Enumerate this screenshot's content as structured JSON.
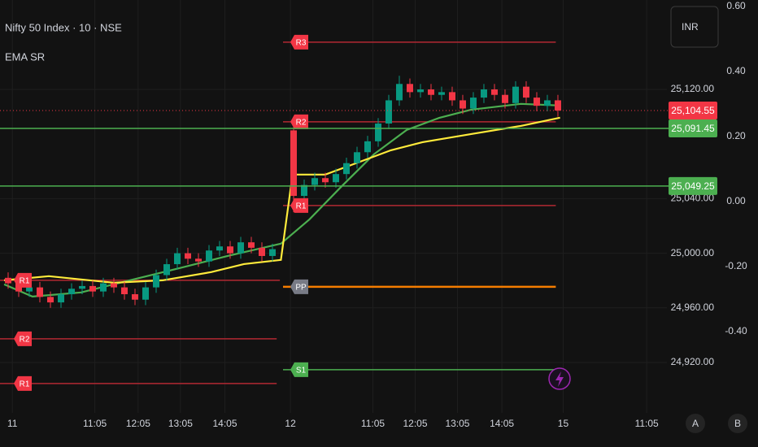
{
  "header": {
    "symbol": "Nifty 50 Index · 10 · NSE",
    "indicator": "EMA SR",
    "currency": "INR",
    "buttons": [
      "A",
      "B"
    ]
  },
  "chart_data": {
    "type": "candlestick",
    "up_color": "#089981",
    "down_color": "#f23645",
    "x": [
      0,
      1,
      2,
      3,
      4,
      5,
      6,
      7,
      8,
      9,
      10,
      11,
      12,
      13,
      14,
      15,
      16,
      17,
      18,
      19,
      20,
      21,
      22,
      23,
      24,
      25,
      27,
      28,
      29,
      30,
      31,
      32,
      33,
      34,
      35,
      36,
      37,
      38,
      39,
      40,
      41,
      42,
      43,
      44,
      45,
      46,
      47,
      48,
      49,
      50,
      51,
      52
    ],
    "open": [
      24982,
      24978,
      24972,
      24975,
      24968,
      24964,
      24970,
      24974,
      24976,
      24972,
      24978,
      24975,
      24970,
      24966,
      24975,
      24984,
      24992,
      25000,
      24996,
      24994,
      25002,
      25005,
      25000,
      25008,
      25004,
      24998,
      25090,
      25042,
      25050,
      25055,
      25052,
      25058,
      25066,
      25074,
      25082,
      25095,
      25112,
      25124,
      25118,
      25120,
      25116,
      25118,
      25112,
      25106,
      25114,
      25120,
      25116,
      25110,
      25122,
      25114,
      25108,
      25112
    ],
    "high": [
      24986,
      24982,
      24979,
      24979,
      24972,
      24974,
      24978,
      24980,
      24980,
      24982,
      24982,
      24979,
      24974,
      24979,
      24988,
      24996,
      25004,
      25004,
      25000,
      25006,
      25009,
      25009,
      25012,
      25012,
      25008,
      25007,
      25095,
      25054,
      25059,
      25059,
      25062,
      25070,
      25078,
      25086,
      25099,
      25116,
      25130,
      25128,
      25124,
      25124,
      25122,
      25122,
      25116,
      25118,
      25124,
      25124,
      25120,
      25126,
      25126,
      25118,
      25116,
      25116
    ],
    "low": [
      24974,
      24968,
      24968,
      24964,
      24960,
      24960,
      24966,
      24970,
      24968,
      24968,
      24971,
      24966,
      24962,
      24962,
      24971,
      24980,
      24988,
      24992,
      24990,
      24990,
      24998,
      24996,
      24996,
      25000,
      24994,
      24994,
      25030,
      25038,
      25046,
      25048,
      25048,
      25054,
      25062,
      25070,
      25078,
      25091,
      25108,
      25114,
      25114,
      25112,
      25112,
      25108,
      25102,
      25102,
      25110,
      25112,
      25106,
      25106,
      25110,
      25104,
      25104,
      25100
    ],
    "close": [
      24978,
      24972,
      24975,
      24968,
      24964,
      24970,
      24974,
      24976,
      24972,
      24978,
      24975,
      24970,
      24966,
      24975,
      24984,
      24992,
      25000,
      24996,
      24994,
      25002,
      25005,
      25000,
      25008,
      25004,
      24998,
      25003,
      25042,
      25050,
      25055,
      25052,
      25058,
      25066,
      25074,
      25082,
      25095,
      25112,
      25124,
      25118,
      25120,
      25116,
      25118,
      25112,
      25106,
      25114,
      25120,
      25116,
      25110,
      25122,
      25114,
      25108,
      25112,
      25104.55
    ],
    "lines": [
      {
        "color": "#4caf50",
        "x": [
          -0.38,
          2.3,
          6.9,
          11.5,
          16.2,
          20.8,
          25.8,
          28.5,
          31.5,
          34.6,
          37.7,
          40.8,
          43.8,
          48.5,
          52.2
        ],
        "values": [
          24977.2,
          24968.3,
          24971.3,
          24980.2,
          24989.1,
          24998.1,
          25007.0,
          25024.8,
          25048.7,
          25072.5,
          25090.3,
          25099.25,
          25105.2,
          25109.4,
          25108.2
        ]
      },
      {
        "color": "#ffeb3b",
        "x": [
          -0.38,
          3.85,
          10,
          14.6,
          19.2,
          22.3,
          25.8,
          26.9,
          30,
          33.1,
          36.2,
          39.2,
          43.8,
          48.5,
          52.2
        ],
        "values": [
          24980.2,
          24983.2,
          24978.4,
          24980.2,
          24986.2,
          24992.1,
          24995.1,
          25057.6,
          25057.6,
          25066.5,
          25075.4,
          25081.4,
          25087.3,
          25093.3,
          25099.3
        ]
      }
    ],
    "levels": [
      {
        "label": "R1",
        "value": 24980.2,
        "color": "#f23645",
        "line_color": "#b22833",
        "x": [
          -0.77,
          25.7
        ]
      },
      {
        "label": "R2",
        "value": 24937.3,
        "color": "#f23645",
        "line_color": "#b22833",
        "x": [
          -0.77,
          25.4
        ]
      },
      {
        "label": "R1",
        "value": 24904.6,
        "color": "#f23645",
        "line_color": "#b22833",
        "x": [
          -0.77,
          25.4
        ]
      },
      {
        "label": "R3",
        "value": 25154.6,
        "color": "#f23645",
        "line_color": "#b22833",
        "x": [
          26.0,
          51.8
        ]
      },
      {
        "label": "R2",
        "value": 25096.3,
        "color": "#f23645",
        "line_color": "#b22833",
        "x": [
          26.0,
          51.8
        ]
      },
      {
        "label": "R1",
        "value": 25034.96,
        "color": "#f23645",
        "line_color": "#b22833",
        "x": [
          26.0,
          51.8
        ]
      },
      {
        "label": "PP",
        "value": 24975.4,
        "color": "#787b86",
        "line_color": "#f57c00",
        "x": [
          26.0,
          51.8
        ]
      },
      {
        "label": "S1",
        "value": 24914.7,
        "color": "#4caf50",
        "line_color": "#4caf50",
        "x": [
          26.0,
          51.8
        ]
      }
    ],
    "price_lines": [
      {
        "value": 25104.55,
        "label": "25,104.55",
        "color": "#f23645",
        "style": "dotted"
      },
      {
        "value": 25091.45,
        "label": "25,091.45",
        "color": "#4caf50",
        "style": "solid"
      },
      {
        "value": 25049.25,
        "label": "25,049.25",
        "color": "#4caf50",
        "style": "solid"
      }
    ],
    "xlim": [
      -0.77,
      62.31
    ],
    "xticks": [
      {
        "value": 0.4,
        "label": "11"
      },
      {
        "value": 8.2,
        "label": "11:05"
      },
      {
        "value": 12.3,
        "label": "12:05"
      },
      {
        "value": 16.3,
        "label": "13:05"
      },
      {
        "value": 20.5,
        "label": "14:05"
      },
      {
        "value": 26.7,
        "label": "12"
      },
      {
        "value": 34.5,
        "label": "11:05"
      },
      {
        "value": 38.5,
        "label": "12:05"
      },
      {
        "value": 42.5,
        "label": "13:05"
      },
      {
        "value": 46.7,
        "label": "14:05"
      },
      {
        "value": 52.5,
        "label": "15"
      },
      {
        "value": 60.4,
        "label": "11:05"
      }
    ],
    "ylim": [
      24875.95,
      25185.48
    ],
    "yticks": [
      {
        "value": 24920,
        "label": "24,920.00"
      },
      {
        "value": 24960,
        "label": "24,960.00"
      },
      {
        "value": 25000,
        "label": "25,000.00"
      },
      {
        "value": 25040,
        "label": "25,040.00"
      },
      {
        "value": 25120,
        "label": "25,120.00"
      }
    ],
    "y2lim": [
      -0.68,
      0.62
    ],
    "y2ticks": [
      {
        "value": 0.6,
        "label": "0.60"
      },
      {
        "value": 0.4,
        "label": "0.40"
      },
      {
        "value": 0.2,
        "label": "0.20"
      },
      {
        "value": 0,
        "label": "0.00"
      },
      {
        "value": -0.2,
        "label": "-0.20"
      },
      {
        "value": -0.4,
        "label": "-0.40"
      }
    ],
    "grid": true
  }
}
